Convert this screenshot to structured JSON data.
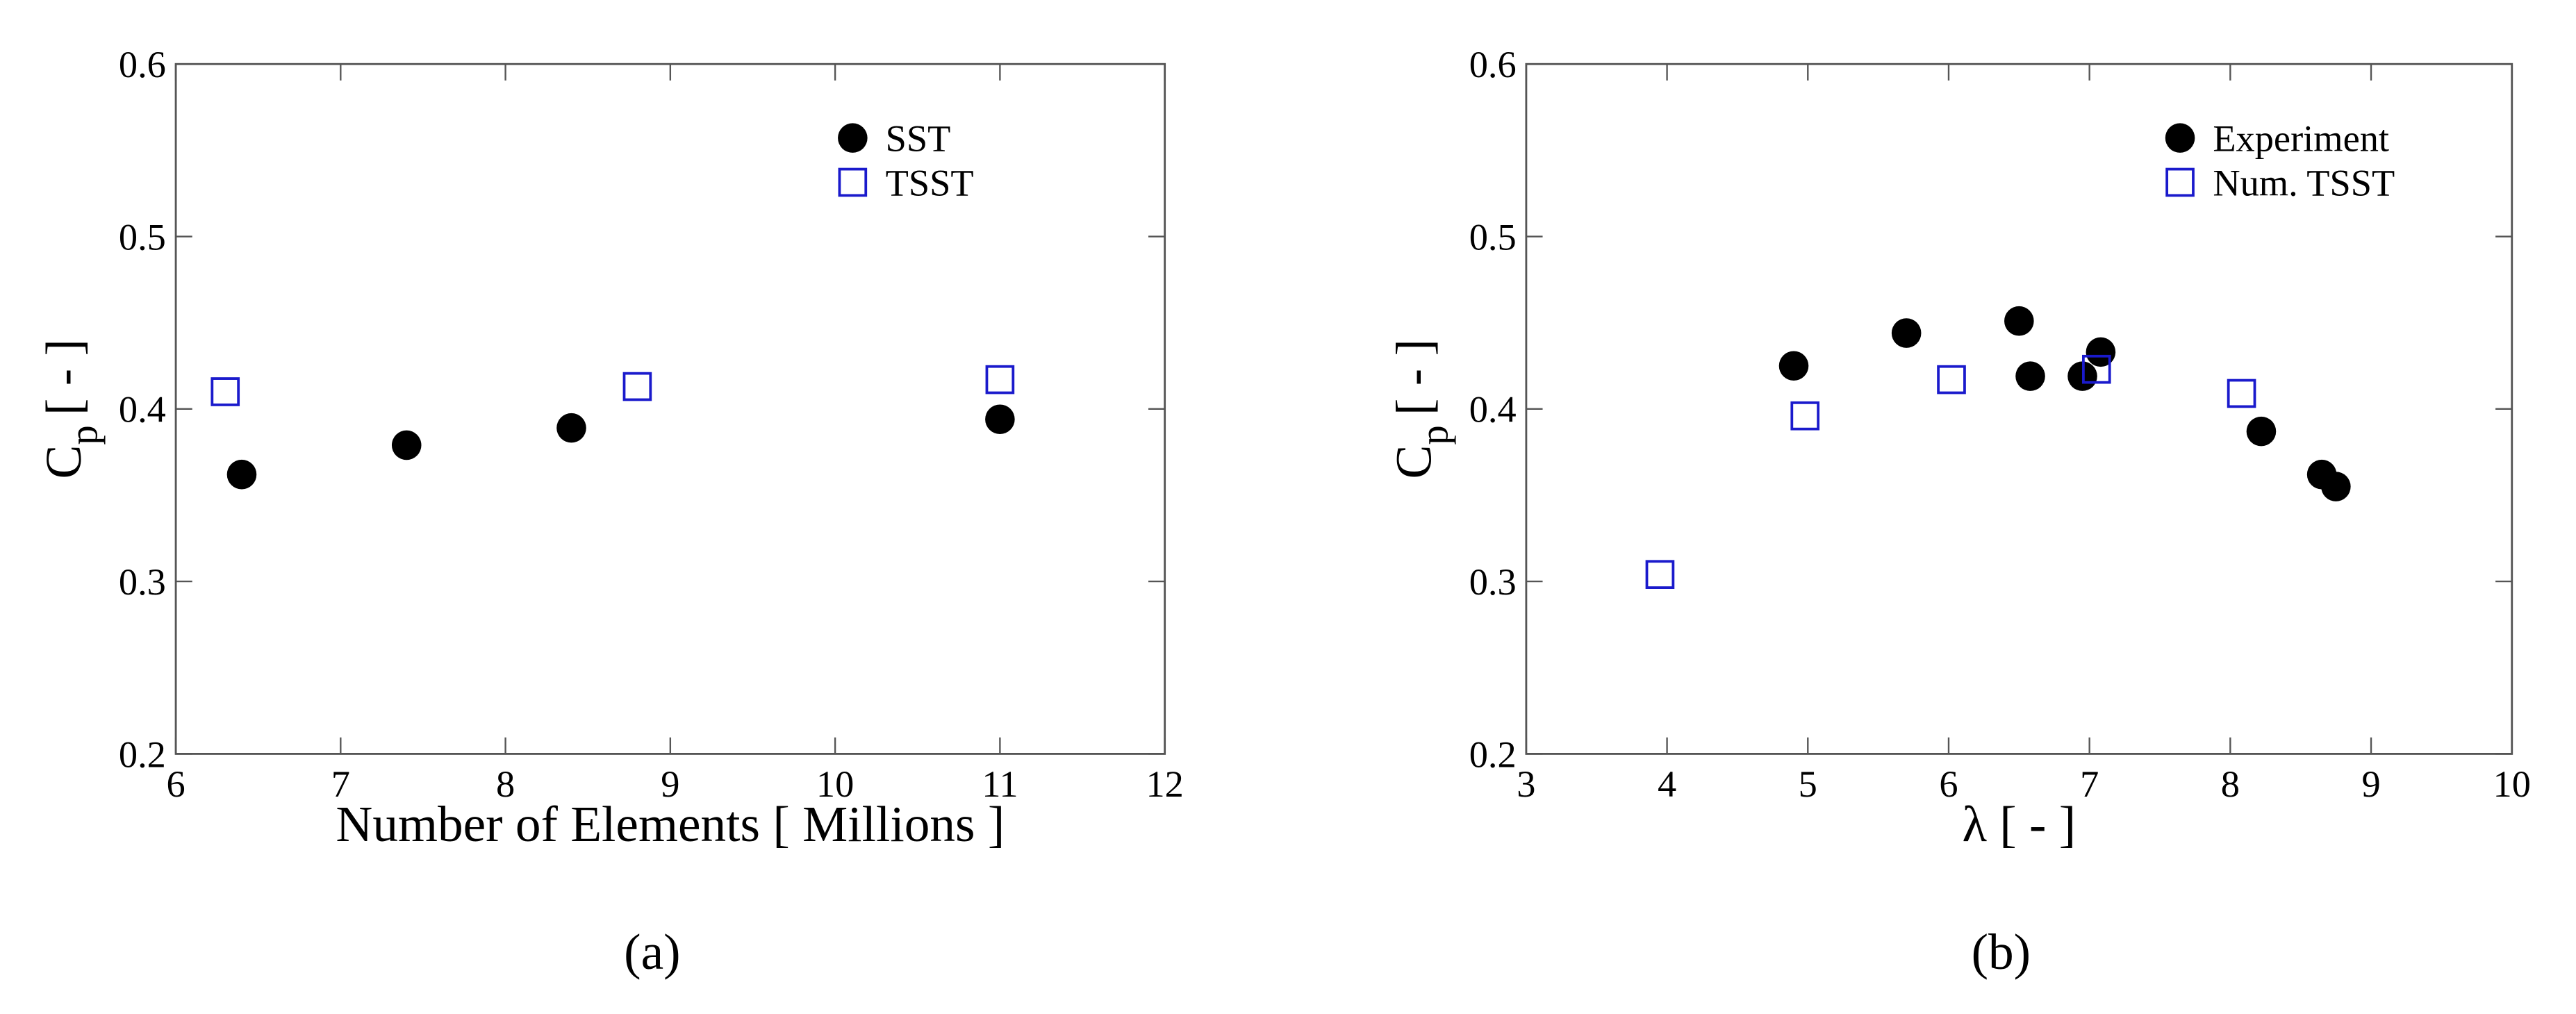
{
  "chart_data": [
    {
      "type": "scatter",
      "caption": "(a)",
      "xlabel": "Number of Elements [ Millions ]",
      "ylabel": "C",
      "ylabel_sub": "p",
      "ylabel_unit": "[ - ]",
      "xlim": [
        6,
        12
      ],
      "xticks": [
        6,
        7,
        8,
        9,
        10,
        11,
        12
      ],
      "ylim": [
        0.2,
        0.6
      ],
      "yticks": [
        0.2,
        0.3,
        0.4,
        0.5,
        0.6
      ],
      "legend": "upper right",
      "series": [
        {
          "name": "SST",
          "color": "#000000",
          "marker": "circle",
          "x": [
            6.4,
            7.4,
            8.4,
            11
          ],
          "values": [
            0.362,
            0.379,
            0.389,
            0.394
          ]
        },
        {
          "name": "TSST",
          "color": "#1a1acc",
          "marker": "square",
          "x": [
            6.3,
            8.8,
            11
          ],
          "values": [
            0.41,
            0.413,
            0.417
          ]
        }
      ]
    },
    {
      "type": "scatter",
      "caption": "(b)",
      "xlabel": "λ [ - ]",
      "ylabel": "C",
      "ylabel_sub": "p",
      "ylabel_unit": "[ - ]",
      "xlim": [
        3,
        10
      ],
      "xticks": [
        3,
        4,
        5,
        6,
        7,
        8,
        9,
        10
      ],
      "ylim": [
        0.2,
        0.6
      ],
      "yticks": [
        0.2,
        0.3,
        0.4,
        0.5,
        0.6
      ],
      "legend": "upper right",
      "series": [
        {
          "name": "Experiment",
          "color": "#000000",
          "marker": "circle",
          "x": [
            4.9,
            5.7,
            6.5,
            6.58,
            6.95,
            7.08,
            8.22,
            8.65,
            8.75
          ],
          "values": [
            0.425,
            0.444,
            0.451,
            0.419,
            0.419,
            0.433,
            0.387,
            0.362,
            0.355
          ]
        },
        {
          "name": "Num. TSST",
          "color": "#1a1acc",
          "marker": "square",
          "x": [
            3.95,
            4.98,
            6.02,
            7.05,
            8.08
          ],
          "values": [
            0.304,
            0.396,
            0.417,
            0.423,
            0.409
          ]
        }
      ]
    }
  ]
}
